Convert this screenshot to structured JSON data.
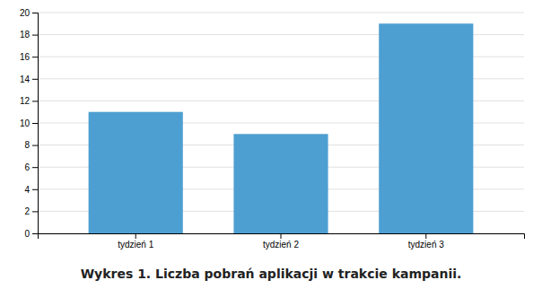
{
  "chart_data": {
    "type": "bar",
    "title": "Wykres 1. Liczba pobrań aplikacji w trakcie kampanii.",
    "categories": [
      "tydzień 1",
      "tydzień 2",
      "tydzień 3"
    ],
    "values": [
      11,
      9,
      19
    ],
    "color": "#4E9FD1",
    "ylim": [
      0,
      20
    ],
    "yticks": [
      0,
      2,
      4,
      6,
      8,
      10,
      12,
      14,
      16,
      18,
      20
    ],
    "grid": true
  }
}
